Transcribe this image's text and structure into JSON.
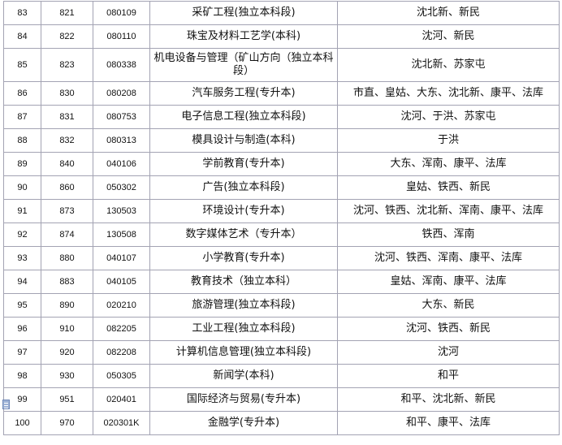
{
  "rows": [
    [
      "83",
      "821",
      "080109",
      "采矿工程(独立本科段)",
      "沈北新、新民"
    ],
    [
      "84",
      "822",
      "080110",
      "珠宝及材料工艺学(本科)",
      "沈河、新民"
    ],
    [
      "85",
      "823",
      "080338",
      "机电设备与管理（矿山方向（独立本科段）",
      "沈北新、苏家屯"
    ],
    [
      "86",
      "830",
      "080208",
      "汽车服务工程(专升本)",
      "市直、皇姑、大东、沈北新、康平、法库"
    ],
    [
      "87",
      "831",
      "080753",
      "电子信息工程(独立本科段)",
      "沈河、于洪、苏家屯"
    ],
    [
      "88",
      "832",
      "080313",
      "模具设计与制造(本科)",
      "于洪"
    ],
    [
      "89",
      "840",
      "040106",
      "学前教育(专升本)",
      "大东、浑南、康平、法库"
    ],
    [
      "90",
      "860",
      "050302",
      "广告(独立本科段)",
      "皇姑、铁西、新民"
    ],
    [
      "91",
      "873",
      "130503",
      "环境设计(专升本)",
      "沈河、铁西、沈北新、浑南、康平、法库"
    ],
    [
      "92",
      "874",
      "130508",
      "数字媒体艺术（专升本）",
      "铁西、浑南"
    ],
    [
      "93",
      "880",
      "040107",
      "小学教育(专升本)",
      "沈河、铁西、浑南、康平、法库"
    ],
    [
      "94",
      "883",
      "040105",
      "教育技术（独立本科）",
      "皇姑、浑南、康平、法库"
    ],
    [
      "95",
      "890",
      "020210",
      "旅游管理(独立本科段)",
      "大东、新民"
    ],
    [
      "96",
      "910",
      "082205",
      "工业工程(独立本科段)",
      "沈河、铁西、新民"
    ],
    [
      "97",
      "920",
      "082208",
      "计算机信息管理(独立本科段)",
      "沈河"
    ],
    [
      "98",
      "930",
      "050305",
      "新闻学(本科)",
      "和平"
    ],
    [
      "99",
      "951",
      "020401",
      "国际经济与贸易(专升本)",
      "和平、沈北新、新民"
    ],
    [
      "100",
      "970",
      "020301K",
      "金融学(专升本)",
      "和平、康平、法库"
    ]
  ],
  "icons": {
    "row_marker": "document-icon"
  }
}
